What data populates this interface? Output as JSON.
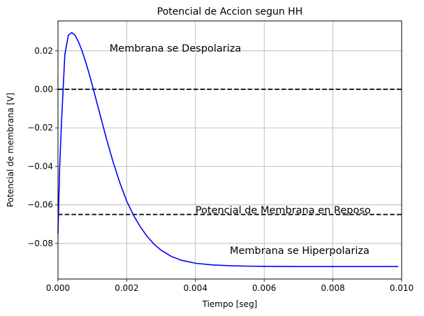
{
  "chart_data": {
    "type": "line",
    "title": "Potencial de Accion segun HH",
    "xlabel": "Tiempo [seg]",
    "ylabel": "Potencial de membrana [V]",
    "xlim": [
      0,
      0.01
    ],
    "ylim": [
      -0.0985,
      0.0355
    ],
    "grid": true,
    "x_ticks": [
      {
        "value": 0.0,
        "label": "0.000"
      },
      {
        "value": 0.002,
        "label": "0.002"
      },
      {
        "value": 0.004,
        "label": "0.004"
      },
      {
        "value": 0.006,
        "label": "0.006"
      },
      {
        "value": 0.008,
        "label": "0.008"
      },
      {
        "value": 0.01,
        "label": "0.010"
      }
    ],
    "y_ticks": [
      {
        "value": -0.08,
        "label": "−0.08"
      },
      {
        "value": -0.06,
        "label": "−0.06"
      },
      {
        "value": -0.04,
        "label": "−0.04"
      },
      {
        "value": -0.02,
        "label": "−0.02"
      },
      {
        "value": 0.0,
        "label": "0.00"
      },
      {
        "value": 0.02,
        "label": "0.02"
      }
    ],
    "series": [
      {
        "color": "#0000ff",
        "x": [
          0,
          5e-05,
          0.0001,
          0.0002,
          0.0003,
          0.0004,
          0.0005,
          0.0006,
          0.0007,
          0.0008,
          0.0009,
          0.001,
          0.0012,
          0.0014,
          0.0016,
          0.0018,
          0.002,
          0.0022,
          0.0024,
          0.0026,
          0.0028,
          0.003,
          0.0033,
          0.0036,
          0.004,
          0.0045,
          0.005,
          0.0055,
          0.006,
          0.007,
          0.008,
          0.009,
          0.0099
        ],
        "y": [
          -0.075,
          -0.04,
          -0.018,
          0.018,
          0.028,
          0.0295,
          0.028,
          0.0245,
          0.02,
          0.0145,
          0.0085,
          0.002,
          -0.0115,
          -0.025,
          -0.0375,
          -0.0485,
          -0.058,
          -0.0655,
          -0.0715,
          -0.0765,
          -0.0805,
          -0.0835,
          -0.0868,
          -0.0888,
          -0.0903,
          -0.0912,
          -0.0916,
          -0.0918,
          -0.0919,
          -0.092,
          -0.092,
          -0.092,
          -0.092
        ]
      }
    ],
    "reference_lines": [
      {
        "y": 0.0,
        "color": "#000000",
        "style": "dashed"
      },
      {
        "y": -0.065,
        "color": "#000000",
        "style": "dashed"
      }
    ],
    "annotations": [
      {
        "text": "Membrana se Despolariza",
        "x": 0.0015,
        "y": 0.0195
      },
      {
        "text": "Potencial de Membrana en Reposo",
        "x": 0.004,
        "y": -0.0645
      },
      {
        "text": "Membrana se Hiperpolariza",
        "x": 0.005,
        "y": -0.0855
      }
    ]
  }
}
